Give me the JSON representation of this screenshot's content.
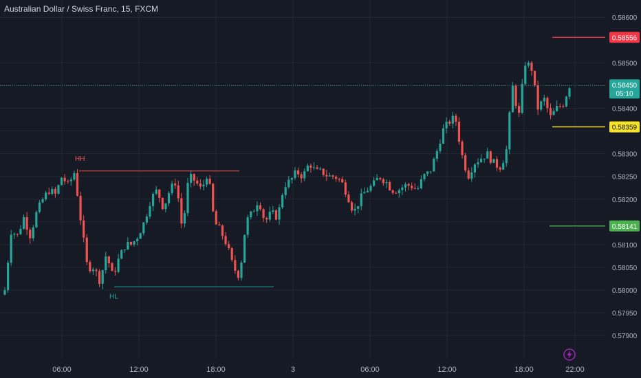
{
  "header": {
    "title": "Australian Dollar / Swiss Franc, 15, FXCM"
  },
  "colors": {
    "background": "#161a25",
    "grid": "#232734",
    "up": "#26a69a",
    "down": "#ef5350",
    "price_line": "#26a69a",
    "resistance": "#f23645",
    "pivot": "#f5e32b",
    "support": "#4caf50",
    "axis_text": "#b2b5be",
    "hh_line": "#ef5350",
    "hl_line": "#26a69a"
  },
  "chart_data": {
    "type": "candlestick",
    "symbol": "AUDCHF",
    "interval": "15",
    "ylim": [
      0.5787,
      0.5862
    ],
    "y_ticks": [
      "0.58600",
      "0.58500",
      "0.58450",
      "0.58400",
      "0.58350",
      "0.58300",
      "0.58250",
      "0.58200",
      "0.58150",
      "0.58100",
      "0.58050",
      "0.58000",
      "0.57950",
      "0.57900"
    ],
    "x_ticks": [
      "06:00",
      "12:00",
      "18:00",
      "3",
      "06:00",
      "12:00",
      "18:00",
      "22:00"
    ],
    "current_price": {
      "value": "0.58450",
      "countdown": "05:10"
    },
    "levels": [
      {
        "name": "resistance",
        "value": 0.58556,
        "label": "0.58556"
      },
      {
        "name": "pivot",
        "value": 0.58359,
        "label": "0.58359"
      },
      {
        "name": "support",
        "value": 0.58141,
        "label": "0.58141"
      }
    ],
    "annotations": [
      {
        "text": "HH",
        "value": 0.58262
      },
      {
        "text": "HL",
        "value": 0.58007
      }
    ],
    "path": [
      0.58,
      0.5813,
      0.5812,
      0.5816,
      0.5812,
      0.5817,
      0.582,
      0.5822,
      0.5821,
      0.5825,
      0.5823,
      0.5826,
      0.5815,
      0.5805,
      0.5805,
      0.5802,
      0.5808,
      0.5803,
      0.5807,
      0.581,
      0.581,
      0.5812,
      0.5815,
      0.582,
      0.5822,
      0.5818,
      0.5822,
      0.5824,
      0.5813,
      0.5825,
      0.5824,
      0.5822,
      0.5826,
      0.5815,
      0.5813,
      0.581,
      0.5805,
      0.5803,
      0.5815,
      0.5817,
      0.582,
      0.5815,
      0.5817,
      0.5816,
      0.5823,
      0.5824,
      0.5826,
      0.5825,
      0.5828,
      0.5826,
      0.5826,
      0.5825,
      0.5825,
      0.5824,
      0.5821,
      0.5817,
      0.582,
      0.5822,
      0.5823,
      0.5825,
      0.5824,
      0.5822,
      0.5822,
      0.5823,
      0.5823,
      0.5822,
      0.5825,
      0.5826,
      0.583,
      0.5835,
      0.5837,
      0.5838,
      0.583,
      0.5825,
      0.5828,
      0.5829,
      0.583,
      0.5828,
      0.5827,
      0.583,
      0.5845,
      0.5838,
      0.585,
      0.5849,
      0.584,
      0.5842,
      0.5838,
      0.584,
      0.5841,
      0.5845
    ]
  },
  "footer": {
    "flash_icon": "lightning-icon"
  }
}
